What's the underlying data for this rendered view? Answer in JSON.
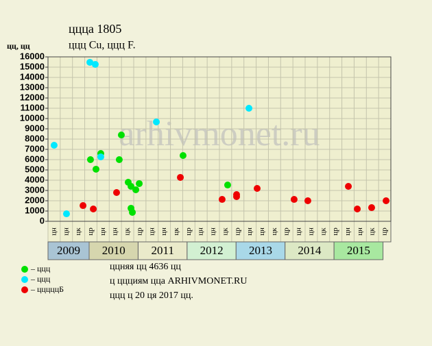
{
  "chart_data": {
    "type": "scatter",
    "title": "ццца 1805",
    "subtitle": "ццц Cu, ццц F.",
    "y_label": "цц, цц",
    "watermark": "arhivmonet.ru",
    "xlim": [
      0,
      28
    ],
    "ylim": [
      0,
      16000
    ],
    "yticks": [
      0,
      1000,
      2000,
      3000,
      4000,
      5000,
      6000,
      7000,
      8000,
      9000,
      10000,
      11000,
      12000,
      13000,
      14000,
      15000,
      16000
    ],
    "grid": true,
    "columns": [
      "цн",
      "цн",
      "цк",
      "цр",
      "цн",
      "цн",
      "цк",
      "цр",
      "цн",
      "цн",
      "цк",
      "цр",
      "цн",
      "цн",
      "цк",
      "цр",
      "цн",
      "цн",
      "цк",
      "цр",
      "цн",
      "цн",
      "цк",
      "цр",
      "цн",
      "цн",
      "цк",
      "цр"
    ],
    "years": [
      {
        "label": "2009",
        "color": "#a9c4d4"
      },
      {
        "label": "2010",
        "color": "#d6d6ae"
      },
      {
        "label": "2011",
        "color": "#eaeaca"
      },
      {
        "label": "2012",
        "color": "#d2f0d2"
      },
      {
        "label": "2013",
        "color": "#a9d8e8"
      },
      {
        "label": "2014",
        "color": "#dce8c4"
      },
      {
        "label": "2015",
        "color": "#a8e8a0"
      }
    ],
    "series": [
      {
        "name": "– ццц",
        "color": "#00e000",
        "x": [
          3.47,
          4.31,
          3.92,
          5.99,
          5.82,
          6.55,
          6.78,
          6.78,
          6.89,
          7.17,
          7.45,
          11.03,
          14.67
        ],
        "values": [
          6000,
          6600,
          5070,
          8400,
          6000,
          3800,
          3400,
          1270,
          870,
          3070,
          3670,
          6400,
          3530
        ]
      },
      {
        "name": "– ццц",
        "color": "#00e8ff",
        "x": [
          0.5,
          1.51,
          3.42,
          3.86,
          4.31,
          8.85,
          16.41
        ],
        "values": [
          7400,
          730,
          15470,
          15270,
          6270,
          9670,
          11000
        ]
      },
      {
        "name": "– цццццБ",
        "color": "#ee0000",
        "x": [
          2.86,
          3.7,
          5.6,
          10.81,
          14.22,
          15.4,
          15.4,
          17.08,
          20.1,
          21.22,
          24.53,
          25.26,
          26.43,
          27.61
        ],
        "values": [
          1530,
          1200,
          2800,
          4270,
          2130,
          2600,
          2400,
          3200,
          2130,
          2000,
          3400,
          1200,
          1330,
          2000
        ]
      }
    ],
    "notes": [
      "ццняя цц 4636 цц",
      "ц ццциям цца ARHIVMONET.RU",
      "ццц ц 20 ця 2017 цц."
    ]
  }
}
